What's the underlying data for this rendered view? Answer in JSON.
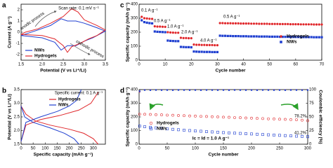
{
  "chart_data": [
    {
      "type": "line",
      "panel_label": "a",
      "xlabel": "Potential (V vs Li⁺/Li)",
      "ylabel": "Current (A g⁻¹)",
      "xlim": [
        1.5,
        3.5
      ],
      "xticks": [
        1.5,
        {
          "value": 2,
          "label": "2.0"
        },
        2.5,
        {
          "value": 3,
          "label": "3.0"
        },
        3.5
      ],
      "ylim": [
        -2.5,
        2.5
      ],
      "yticks": [
        -2,
        -1,
        0,
        1,
        2
      ],
      "annotations": [
        {
          "text": "Scan rate: 0.1 mV s⁻¹"
        },
        {
          "text": "anodic process"
        },
        {
          "text": "cathodic process"
        }
      ],
      "legend": "lower left",
      "series": [
        {
          "name": "NWs",
          "color": "#1f3fd0",
          "x": [
            1.5,
            2.0,
            2.3,
            2.45,
            2.6,
            2.8,
            3.0,
            3.2,
            3.5,
            3.3,
            3.0,
            2.8,
            2.6,
            2.45,
            2.2,
            1.9,
            1.5
          ],
          "values": [
            -0.3,
            -0.5,
            -0.9,
            -1.6,
            -1.2,
            -1.2,
            -0.8,
            -0.5,
            0.1,
            0.4,
            0.8,
            1.0,
            1.0,
            1.2,
            0.6,
            0.2,
            -0.3
          ]
        },
        {
          "name": "Hydrogels",
          "color": "#e0262a",
          "x": [
            1.5,
            2.0,
            2.3,
            2.5,
            2.6,
            2.7,
            2.9,
            3.1,
            3.3,
            3.5,
            3.3,
            3.0,
            2.85,
            2.7,
            2.5,
            2.2,
            1.9,
            1.6,
            1.5
          ],
          "values": [
            -0.2,
            -0.3,
            -0.6,
            -1.2,
            -1.8,
            -1.3,
            -1.0,
            -0.6,
            -0.3,
            0.2,
            0.6,
            1.1,
            1.8,
            2.1,
            1.4,
            0.8,
            0.3,
            0.0,
            -0.2
          ]
        }
      ]
    },
    {
      "type": "line",
      "panel_label": "b",
      "xlabel": "Specific capacity (mAh g⁻¹)",
      "ylabel": "Potential (V vs Li⁺/Li)",
      "xlim": [
        0,
        350
      ],
      "xticks": [
        0,
        50,
        100,
        150,
        200,
        250,
        300
      ],
      "ylim": [
        1.5,
        3.5
      ],
      "yticks": [
        1.5,
        {
          "value": 2,
          "label": "2.0"
        },
        2.5,
        {
          "value": 3,
          "label": "3.0"
        },
        3.5
      ],
      "annotations": [
        {
          "text": "Specific current: 0.1 A g⁻¹"
        }
      ],
      "legend": "upper left",
      "series": [
        {
          "name": "Hydrogels",
          "color": "#e0262a",
          "x": [
            0,
            20,
            60,
            120,
            200,
            260,
            300,
            320,
            null,
            0,
            20,
            80,
            160,
            240,
            290,
            320
          ],
          "values": [
            2.9,
            2.6,
            2.35,
            2.2,
            2.05,
            1.9,
            1.7,
            1.5,
            null,
            1.6,
            2.2,
            2.4,
            2.55,
            2.75,
            3.0,
            3.4
          ]
        },
        {
          "name": "NWs",
          "color": "#1f3fd0",
          "x": [
            0,
            15,
            50,
            120,
            180,
            220,
            240,
            null,
            0,
            20,
            80,
            150,
            200,
            230,
            250
          ],
          "values": [
            2.9,
            2.5,
            2.3,
            2.1,
            1.9,
            1.7,
            1.5,
            null,
            1.6,
            2.3,
            2.5,
            2.7,
            2.9,
            3.1,
            3.5
          ]
        }
      ]
    },
    {
      "type": "scatter",
      "panel_label": "c",
      "xlabel": "Cycle number",
      "ylabel": "Specific capacity (mAh g⁻¹)",
      "xlim": [
        0,
        70
      ],
      "xticks": [
        0,
        10,
        20,
        30,
        40,
        50,
        60,
        70
      ],
      "ylim": [
        0,
        400
      ],
      "yticks": [
        0,
        100,
        200,
        300,
        400
      ],
      "marker_fill": true,
      "annotations": [
        {
          "text": "0.1 A g⁻¹"
        },
        {
          "text": "0.5 A g⁻¹"
        },
        {
          "text": "1.0 A g⁻¹"
        },
        {
          "text": "2.0 A g⁻¹"
        },
        {
          "text": "4.0 A g⁻¹"
        },
        {
          "text": "0.5 A g⁻¹"
        }
      ],
      "legend": "right",
      "x": [
        1,
        2,
        3,
        4,
        5,
        6,
        7,
        8,
        9,
        10,
        11,
        12,
        13,
        14,
        15,
        16,
        17,
        18,
        19,
        20,
        21,
        22,
        23,
        24,
        25,
        26,
        27,
        28,
        29,
        30,
        31,
        32,
        33,
        34,
        35,
        36,
        37,
        38,
        39,
        40,
        41,
        42,
        43,
        44,
        45,
        46,
        47,
        48,
        49,
        50,
        51,
        52,
        53,
        54,
        55,
        56,
        57,
        58,
        59,
        60,
        61,
        62,
        63,
        64,
        65,
        66,
        67,
        68,
        69,
        70
      ],
      "series": [
        {
          "name": "Hydrogels",
          "color": "#e0262a",
          "marker": "circle",
          "values": [
            310,
            300,
            298,
            296,
            295,
            242,
            240,
            240,
            239,
            238,
            200,
            198,
            197,
            196,
            196,
            160,
            158,
            158,
            157,
            157,
            112,
            110,
            110,
            109,
            109,
            108,
            108,
            108,
            107,
            107,
            265,
            265,
            264,
            264,
            264,
            263,
            263,
            263,
            262,
            262,
            262,
            262,
            261,
            261,
            261,
            260,
            260,
            260,
            260,
            259,
            259,
            259,
            259,
            258,
            258,
            258,
            258,
            257,
            257,
            257,
            257,
            256,
            256,
            256,
            256,
            256,
            255,
            255,
            255,
            255
          ]
        },
        {
          "name": "NWs",
          "color": "#1f3fd0",
          "marker": "square",
          "values": [
            285,
            272,
            268,
            265,
            263,
            205,
            203,
            202,
            201,
            200,
            140,
            138,
            137,
            136,
            136,
            95,
            94,
            93,
            93,
            92,
            62,
            61,
            60,
            60,
            59,
            59,
            59,
            58,
            58,
            58,
            175,
            174,
            174,
            173,
            173,
            172,
            172,
            172,
            171,
            171,
            171,
            170,
            170,
            170,
            170,
            169,
            169,
            169,
            169,
            168,
            168,
            168,
            168,
            167,
            167,
            167,
            167,
            166,
            166,
            166,
            166,
            165,
            165,
            165,
            165,
            165,
            164,
            164,
            164,
            164
          ]
        }
      ]
    },
    {
      "type": "scatter",
      "panel_label": "d",
      "xlabel": "Cycle number",
      "ylabel": "Specific capacity (mAh g⁻¹)",
      "y2label": "Coulombic efficiency (%)",
      "xlim": [
        0,
        300
      ],
      "xticks": [
        0,
        50,
        100,
        150,
        200,
        250,
        300
      ],
      "ylim": [
        0,
        400
      ],
      "yticks": [
        0,
        100,
        200,
        300,
        400
      ],
      "y2lim": [
        0,
        100
      ],
      "y2ticks": [
        0,
        25,
        50,
        75,
        100
      ],
      "marker_fill": false,
      "annotations": [
        {
          "text": "78.2%"
        },
        {
          "text": "41.2%"
        },
        {
          "text": "Ic = Id = 1.0 A g⁻¹"
        }
      ],
      "legend": "lower left",
      "x": [
        1,
        10,
        20,
        30,
        40,
        50,
        60,
        70,
        80,
        90,
        100,
        110,
        120,
        130,
        140,
        150,
        160,
        170,
        180,
        190,
        200,
        210,
        220,
        230,
        240,
        250,
        260,
        270,
        280,
        290,
        300
      ],
      "series": [
        {
          "name": "Hydrogels",
          "color": "#e0262a",
          "marker": "circle",
          "values": [
            220,
            219,
            218,
            216,
            215,
            213,
            212,
            210,
            209,
            207,
            206,
            204,
            203,
            201,
            200,
            198,
            197,
            195,
            194,
            192,
            191,
            189,
            188,
            186,
            185,
            183,
            182,
            180,
            179,
            176,
            172
          ],
          "y2_values": [
            96,
            99.5,
            99.6,
            99.4,
            99.5,
            99.6,
            99.5,
            99.4,
            99.6,
            99.5,
            99.5,
            99.6,
            99.4,
            99.5,
            99.6,
            99.5,
            99.4,
            99.5,
            99.6,
            99.5,
            99.5,
            99.4,
            99.6,
            99.5,
            99.5,
            99.6,
            99.4,
            99.5,
            99.5,
            99.6,
            99.5
          ]
        },
        {
          "name": "NWs",
          "color": "#1f3fd0",
          "marker": "square",
          "values": [
            133,
            128,
            124,
            120,
            116,
            112,
            109,
            106,
            103,
            100,
            97,
            95,
            92,
            90,
            88,
            85,
            83,
            81,
            79,
            77,
            75,
            73,
            71,
            69,
            67,
            65,
            63,
            61,
            59,
            57,
            55
          ],
          "y2_values": [
            97,
            99.2,
            99.0,
            99.3,
            99.1,
            99.2,
            99.0,
            99.3,
            99.2,
            99.1,
            99.2,
            99.0,
            99.3,
            99.2,
            99.1,
            99.2,
            99.0,
            99.3,
            99.2,
            99.1,
            99.2,
            99.0,
            99.3,
            99.2,
            99.1,
            99.2,
            99.0,
            99.3,
            99.2,
            99.1,
            99.2
          ]
        }
      ]
    }
  ]
}
